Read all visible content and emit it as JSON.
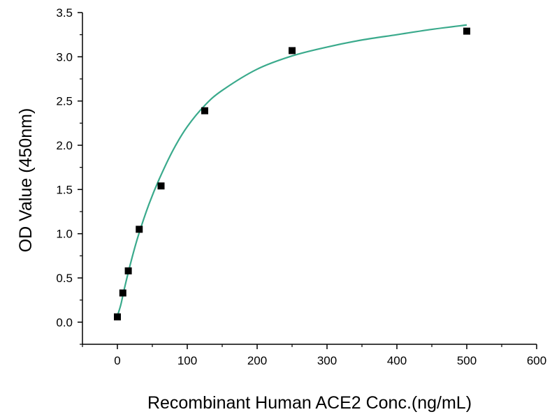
{
  "chart_data": {
    "type": "scatter",
    "title": "",
    "xlabel": "Recombinant Human ACE2 Conc.(ng/mL)",
    "ylabel": "OD Value (450nm)",
    "xlim": [
      -50,
      600
    ],
    "ylim": [
      -0.25,
      3.5
    ],
    "x_ticks": [
      0,
      100,
      200,
      300,
      400,
      500,
      600
    ],
    "y_ticks": [
      0.0,
      0.5,
      1.0,
      1.5,
      2.0,
      2.5,
      3.0,
      3.5
    ],
    "x_tick_labels": [
      "0",
      "100",
      "200",
      "300",
      "400",
      "500",
      "600"
    ],
    "y_tick_labels": [
      "0.0",
      "0.5",
      "1.0",
      "1.5",
      "2.0",
      "2.5",
      "3.0",
      "3.5"
    ],
    "grid": false,
    "legend": "none",
    "series": [
      {
        "type": "scatter",
        "marker": "square",
        "color": "#000000",
        "x": [
          0,
          7.8,
          15.6,
          31.25,
          62.5,
          125,
          250,
          500
        ],
        "y": [
          0.06,
          0.33,
          0.58,
          1.05,
          1.54,
          2.39,
          3.07,
          3.29
        ]
      },
      {
        "type": "line",
        "style": "fitted curve",
        "color": "#3aaa8c",
        "x": [
          0,
          5,
          10,
          20,
          30,
          45,
          60,
          80,
          100,
          125,
          150,
          200,
          250,
          300,
          350,
          400,
          450,
          500
        ],
        "y": [
          0.07,
          0.2,
          0.38,
          0.7,
          0.98,
          1.33,
          1.62,
          1.95,
          2.21,
          2.45,
          2.62,
          2.86,
          3.01,
          3.11,
          3.19,
          3.25,
          3.31,
          3.36
        ]
      }
    ]
  }
}
